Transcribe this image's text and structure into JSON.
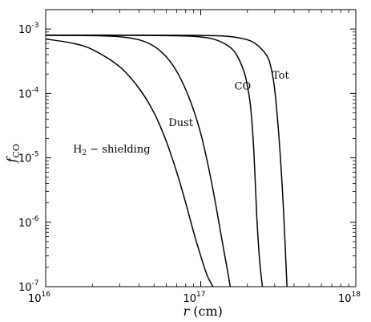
{
  "chart_data": {
    "type": "line",
    "xscale": "log",
    "yscale": "log",
    "xlim": [
      1e+16,
      1e+18
    ],
    "ylim": [
      1e-07,
      0.002
    ],
    "grid": false,
    "xlabel": {
      "italic": "r",
      "rest": " (cm)"
    },
    "ylabel": {
      "italic": "f",
      "sub": "CO"
    },
    "xticks": [
      {
        "value": 1e+16,
        "base": "10",
        "exp": "16"
      },
      {
        "value": 1e+17,
        "base": "10",
        "exp": "17"
      },
      {
        "value": 1e+18,
        "base": "10",
        "exp": "18"
      }
    ],
    "yticks": [
      {
        "value": 0.001,
        "base": "10",
        "exp": "-3"
      },
      {
        "value": 0.0001,
        "base": "10",
        "exp": "-4"
      },
      {
        "value": 1e-05,
        "base": "10",
        "exp": "-5"
      },
      {
        "value": 1e-06,
        "base": "10",
        "exp": "-6"
      },
      {
        "value": 1e-07,
        "base": "10",
        "exp": "-7"
      }
    ],
    "series": [
      {
        "name": "H2 - shielding",
        "label_main": "H",
        "label_sub": "2",
        "label_rest": " − shielding",
        "anchor": [
          1.5e+16,
          1.2e-05
        ],
        "x": [
          1e+16,
          1.5e+16,
          2e+16,
          3e+16,
          4e+16,
          5e+16,
          6e+16,
          7e+16,
          8e+16,
          9e+16,
          1e+17,
          1.1e+17,
          1.2e+17
        ],
        "y": [
          0.0007,
          0.0006,
          0.00048,
          0.00026,
          0.00012,
          5e-05,
          1.8e-05,
          6e-06,
          2e-06,
          7e-07,
          3e-07,
          1.5e-07,
          1e-07
        ]
      },
      {
        "name": "Dust",
        "label_main": "Dust",
        "anchor": [
          6.2e+16,
          3.1e-05
        ],
        "x": [
          1e+16,
          2e+16,
          3e+16,
          4e+16,
          5e+16,
          6e+16,
          7e+16,
          8e+16,
          9e+16,
          1e+17,
          1.1e+17,
          1.2e+17,
          1.3e+17,
          1.4e+17,
          1.5e+17,
          1.55e+17
        ],
        "y": [
          0.0008,
          0.00079,
          0.00076,
          0.00068,
          0.00054,
          0.00037,
          0.00022,
          0.000115,
          5.5e-05,
          2.4e-05,
          9e-06,
          3.2e-06,
          1.1e-06,
          4e-07,
          1.6e-07,
          1e-07
        ]
      },
      {
        "name": "CO",
        "label_main": "CO",
        "anchor": [
          1.65e+17,
          0.000115
        ],
        "x": [
          1e+16,
          3e+16,
          6e+16,
          9e+16,
          1.2e+17,
          1.5e+17,
          1.7e+17,
          1.9e+17,
          2e+17,
          2.1e+17,
          2.2e+17,
          2.3e+17,
          2.4e+17,
          2.5e+17
        ],
        "y": [
          0.0008,
          0.0008,
          0.00079,
          0.00077,
          0.0007,
          0.00055,
          0.0004,
          0.00022,
          0.00013,
          6e-05,
          1.3e-05,
          1.2e-06,
          2.5e-07,
          1e-07
        ]
      },
      {
        "name": "Tot",
        "label_main": "Tot",
        "anchor": [
          2.9e+17,
          0.00017
        ],
        "x": [
          1e+16,
          5e+16,
          1e+17,
          1.5e+17,
          2e+17,
          2.3e+17,
          2.6e+17,
          2.8e+17,
          3e+17,
          3.2e+17,
          3.4e+17,
          3.6e+17
        ],
        "y": [
          0.0008,
          0.0008,
          0.000795,
          0.00077,
          0.00068,
          0.00057,
          0.00042,
          0.00029,
          0.000115,
          2e-05,
          2e-06,
          1e-07
        ]
      }
    ]
  }
}
